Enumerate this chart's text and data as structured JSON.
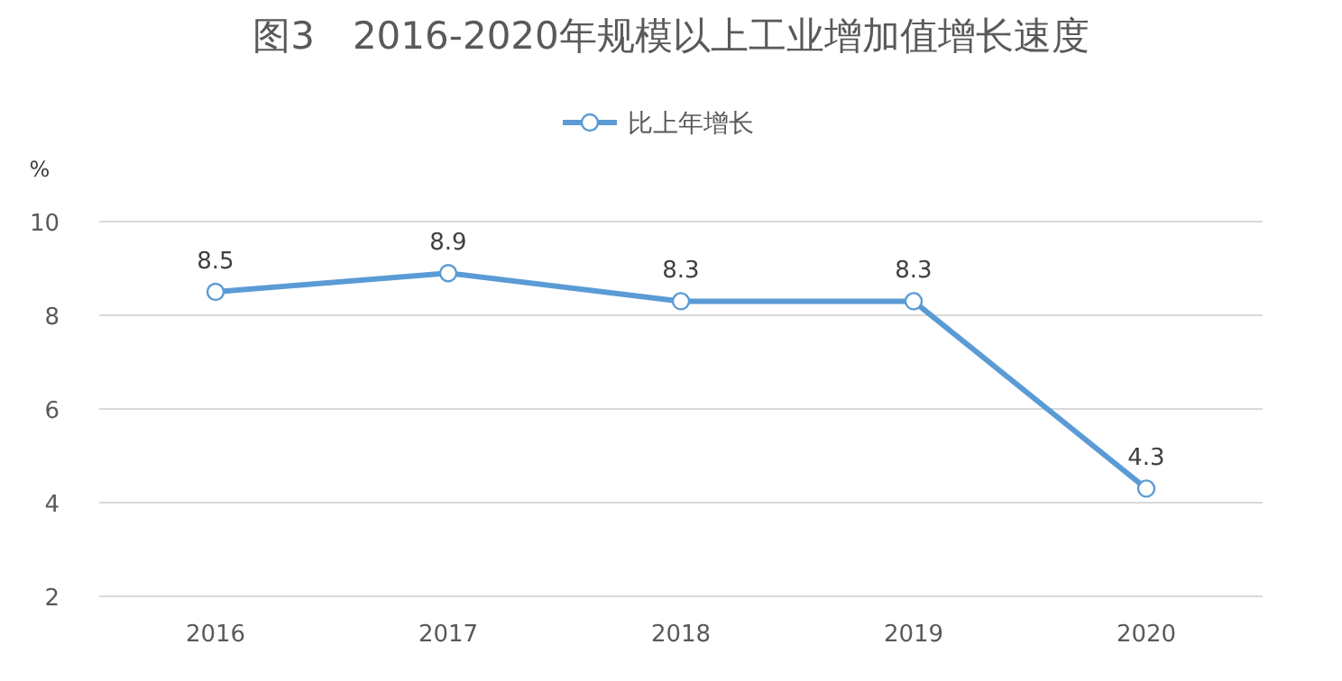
{
  "chart_data": {
    "type": "line",
    "title": "图3　2016-2020年规模以上工业增加值增长速度",
    "ylabel": "%",
    "categories": [
      "2016",
      "2017",
      "2018",
      "2019",
      "2020"
    ],
    "series": [
      {
        "name": "比上年增长",
        "color": "#5b9bd5",
        "values": [
          8.5,
          8.9,
          8.3,
          8.3,
          4.3
        ]
      }
    ],
    "ylim": [
      2,
      10
    ],
    "yticks": [
      2,
      4,
      6,
      8,
      10
    ],
    "grid": "y",
    "legend": "top",
    "marker": "circle",
    "data_labels": true
  }
}
